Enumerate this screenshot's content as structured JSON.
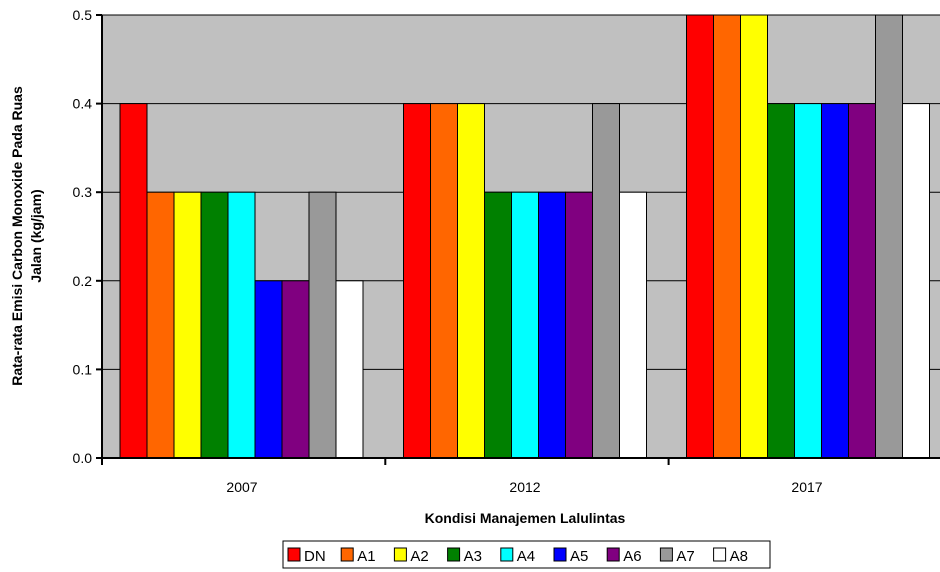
{
  "chart_data": {
    "type": "bar",
    "title": "",
    "xlabel": "Kondisi Manajemen Lalulintas",
    "ylabel_lines": [
      "Rata-rata Emisi Carbon Monoxide Pada Ruas",
      "Jalan (kg/jam)"
    ],
    "categories": [
      "2007",
      "2012",
      "2017"
    ],
    "ylim": [
      0,
      0.5
    ],
    "yticks": [
      "0.0",
      "0.1",
      "0.2",
      "0.3",
      "0.4",
      "0.5"
    ],
    "grid": true,
    "legend_position": "bottom",
    "series": [
      {
        "name": "DN",
        "color": "#ff0000",
        "values": [
          0.4,
          0.4,
          0.5
        ]
      },
      {
        "name": "A1",
        "color": "#ff6600",
        "values": [
          0.3,
          0.4,
          0.5
        ]
      },
      {
        "name": "A2",
        "color": "#ffff00",
        "values": [
          0.3,
          0.4,
          0.5
        ]
      },
      {
        "name": "A3",
        "color": "#008000",
        "values": [
          0.3,
          0.3,
          0.4
        ]
      },
      {
        "name": "A4",
        "color": "#00ffff",
        "values": [
          0.3,
          0.3,
          0.4
        ]
      },
      {
        "name": "A5",
        "color": "#0000ff",
        "values": [
          0.2,
          0.3,
          0.4
        ]
      },
      {
        "name": "A6",
        "color": "#800080",
        "values": [
          0.2,
          0.3,
          0.4
        ]
      },
      {
        "name": "A7",
        "color": "#999999",
        "values": [
          0.3,
          0.4,
          0.5
        ]
      },
      {
        "name": "A8",
        "color": "#ffffff",
        "values": [
          0.2,
          0.3,
          0.4
        ]
      }
    ],
    "plot_background": "#c0c0c0"
  }
}
